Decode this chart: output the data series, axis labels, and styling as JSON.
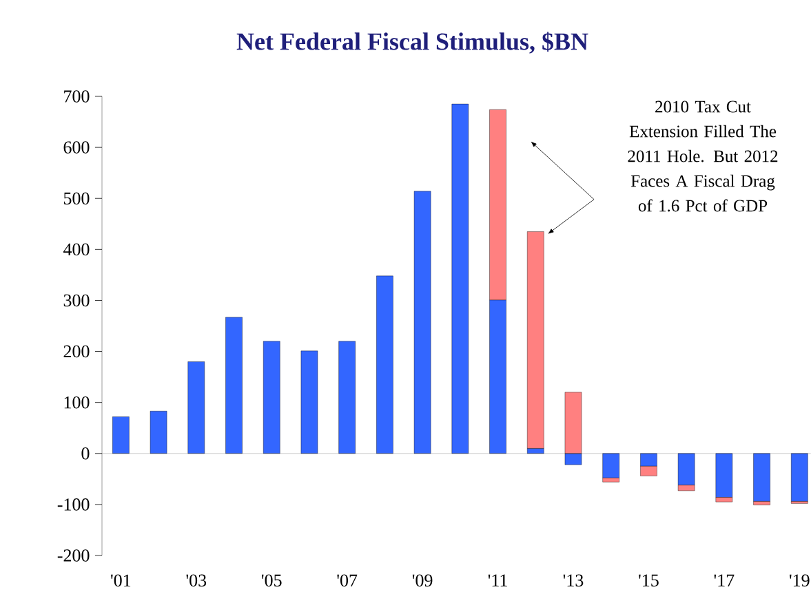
{
  "chart_data": {
    "type": "bar",
    "title": "Net Federal Fiscal Stimulus, $BN",
    "categories": [
      "'01",
      null,
      "'03",
      null,
      "'05",
      null,
      "'07",
      null,
      "'09",
      null,
      "'11",
      null,
      "'13",
      null,
      "'15",
      null,
      "'17",
      null,
      "'19"
    ],
    "series": [
      {
        "color": "#3366ff",
        "values": [
          72,
          83,
          180,
          267,
          220,
          201,
          220,
          348,
          514,
          685,
          301,
          10,
          -22,
          -48,
          -25,
          -62,
          -86,
          -94,
          -94
        ]
      },
      {
        "color": "#ff8080",
        "values": [
          null,
          null,
          null,
          null,
          null,
          null,
          null,
          null,
          null,
          null,
          373,
          425,
          120,
          -8,
          -19,
          -11,
          -9,
          -7,
          -4
        ],
        "base": [
          null,
          null,
          null,
          null,
          null,
          null,
          null,
          null,
          null,
          null,
          301,
          10,
          0,
          -48,
          -25,
          -62,
          -86,
          -94,
          -94
        ]
      }
    ],
    "ylim": [
      -200,
      700
    ],
    "yticks": [
      -200,
      -100,
      0,
      100,
      200,
      300,
      400,
      500,
      600,
      700
    ],
    "annotations": [
      "2010 Tax Cut Extension Filled The 2011 Hole. But 2012 Faces A Fiscal Drag of 1.6 Pct of GDP"
    ]
  }
}
